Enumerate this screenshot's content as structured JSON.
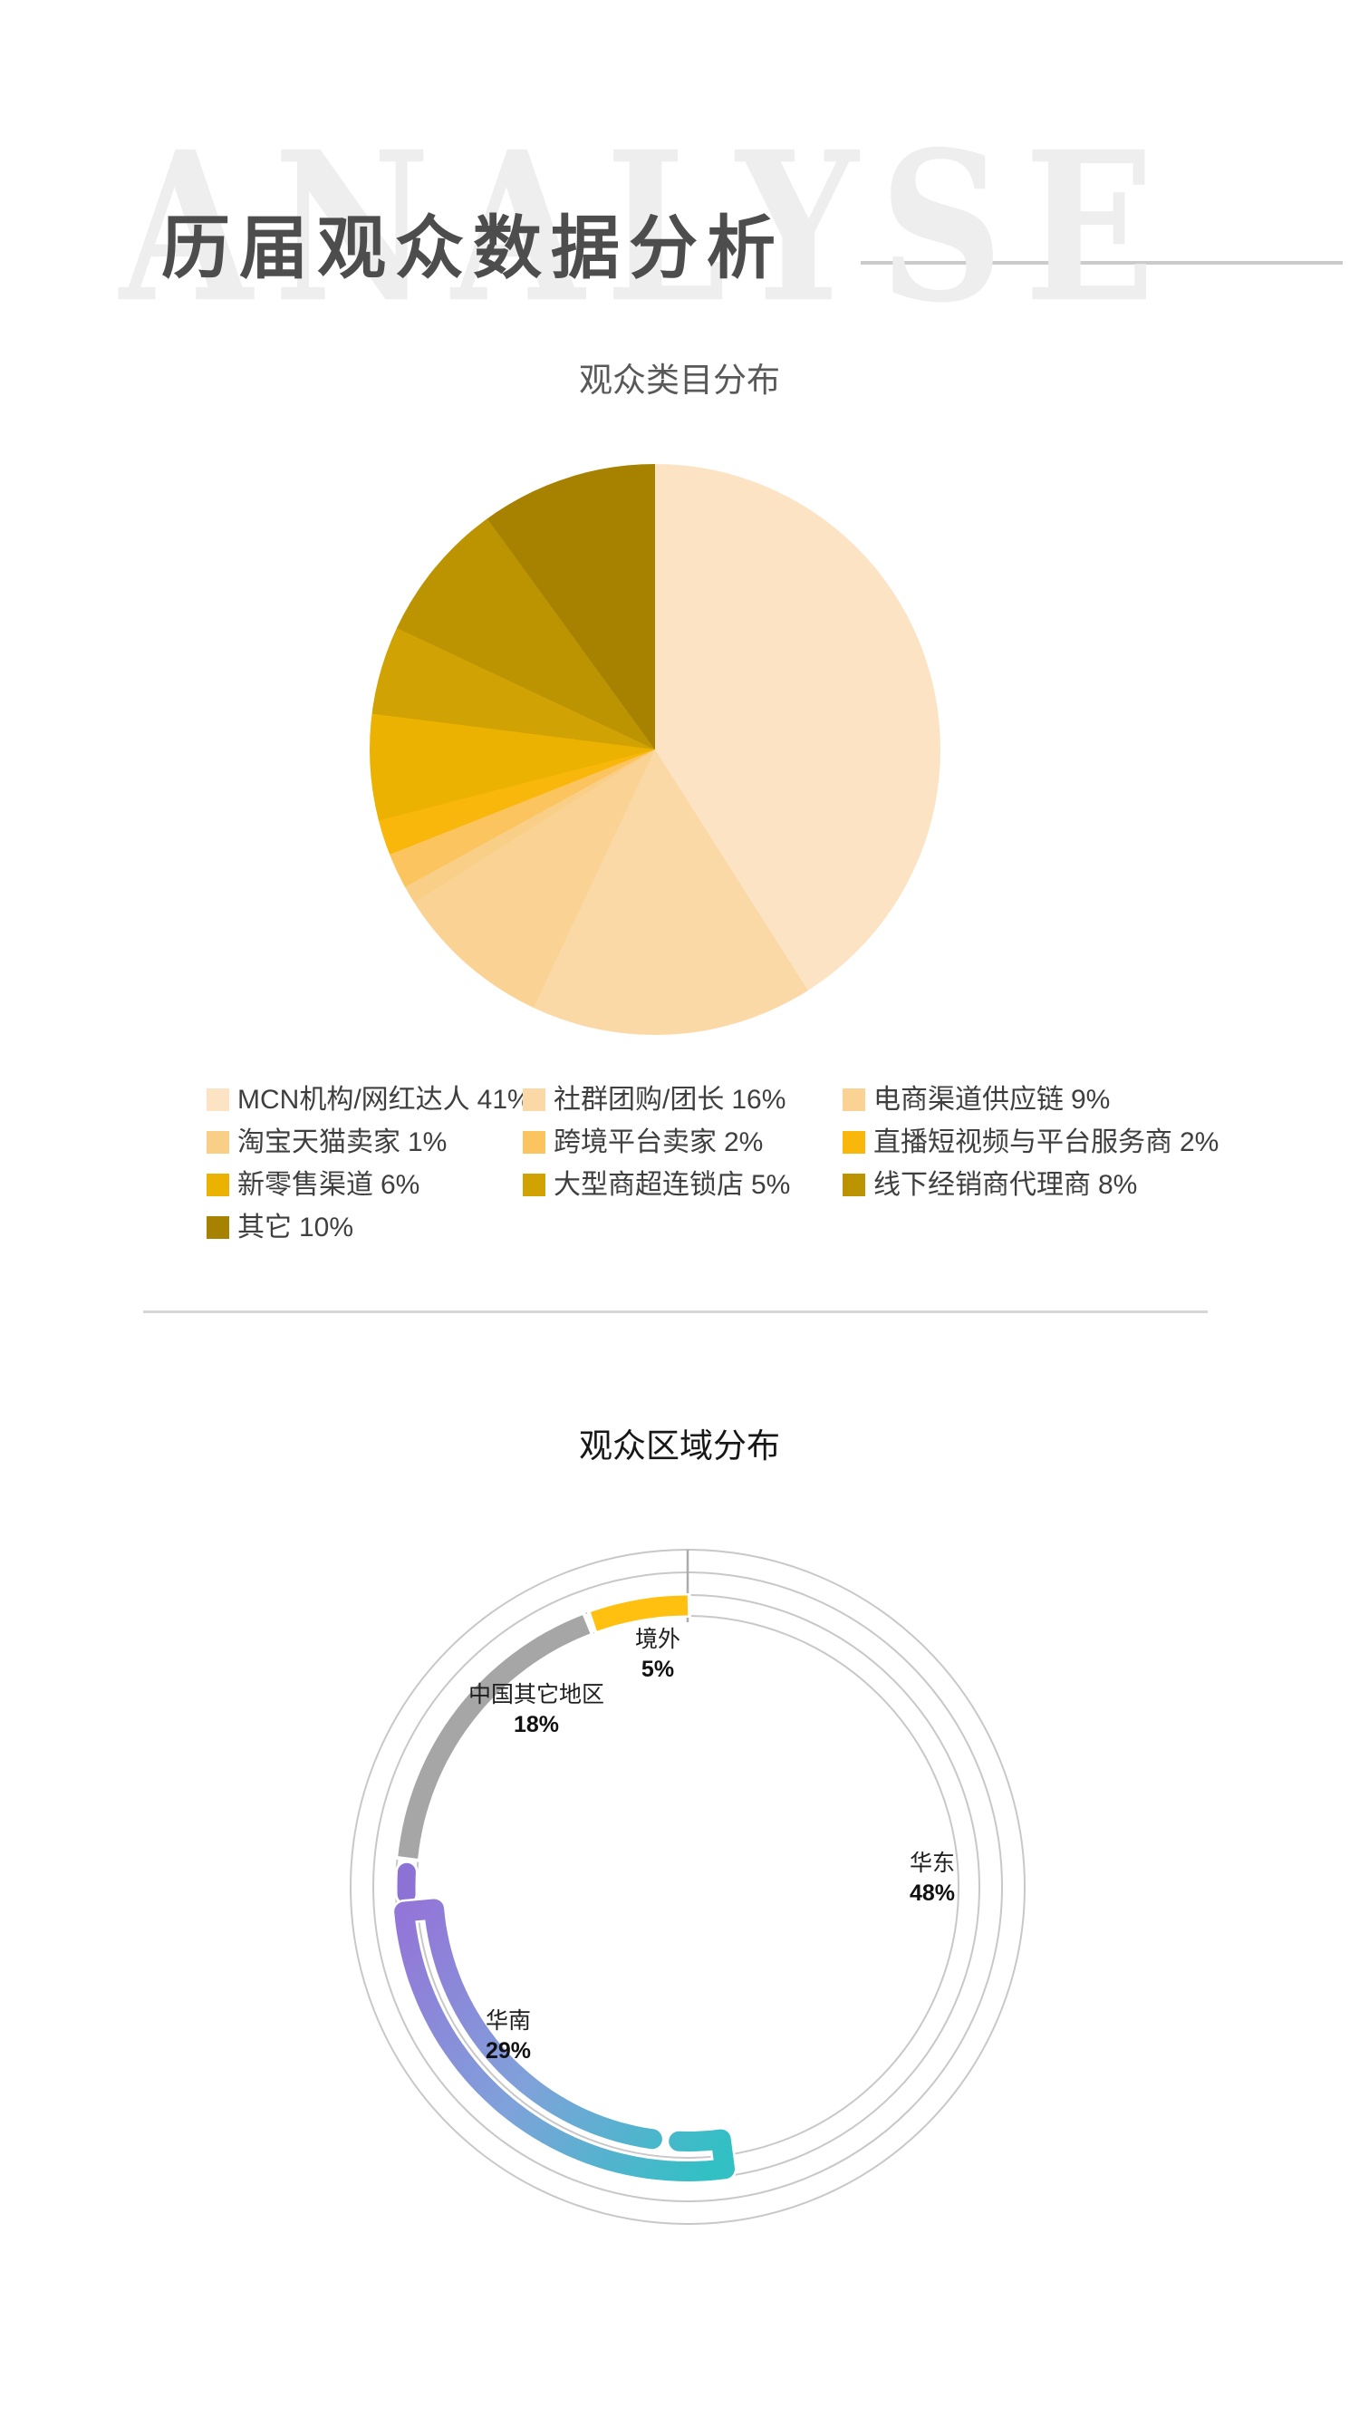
{
  "watermark": "ANALYSE",
  "page_title": "历届观众数据分析",
  "chart_data": [
    {
      "type": "pie",
      "title": "观众类目分布",
      "start_angle_deg": 0,
      "direction": "clockwise",
      "slices": [
        {
          "label": "MCN机构/网红达人",
          "value_pct": 41,
          "pct_label": "41%",
          "color": "#FCE3C3"
        },
        {
          "label": "社群团购/团长",
          "value_pct": 16,
          "pct_label": "16%",
          "color": "#FBD9A6"
        },
        {
          "label": "电商渠道供应链",
          "value_pct": 9,
          "pct_label": "9%",
          "color": "#FAD294"
        },
        {
          "label": "淘宝天猫卖家",
          "value_pct": 1,
          "pct_label": "1%",
          "color": "#F9CE86"
        },
        {
          "label": "跨境平台卖家",
          "value_pct": 2,
          "pct_label": "2%",
          "color": "#FBC45F"
        },
        {
          "label": "直播短视频与平台服务商",
          "value_pct": 2,
          "pct_label": "2%",
          "color": "#F9B70B"
        },
        {
          "label": "新零售渠道",
          "value_pct": 6,
          "pct_label": "6%",
          "color": "#ECB201"
        },
        {
          "label": "大型商超连锁店",
          "value_pct": 5,
          "pct_label": "5%",
          "color": "#D1A203"
        },
        {
          "label": "线下经销商代理商",
          "value_pct": 8,
          "pct_label": "8%",
          "color": "#BC9402"
        },
        {
          "label": "其它",
          "value_pct": 10,
          "pct_label": "10%",
          "color": "#A78200"
        }
      ]
    },
    {
      "type": "radial-bar",
      "title": "观众区域分布",
      "direction": "counterclockwise_from_top",
      "regions": [
        {
          "name": "境外",
          "value_pct": 5,
          "pct_label": "5%",
          "color": "#FFC010"
        },
        {
          "name": "中国其它地区",
          "value_pct": 18,
          "pct_label": "18%",
          "color": "#A6A6A6"
        },
        {
          "name": "华东",
          "value_pct": 48,
          "pct_label": "48%",
          "color": "#32C0C4"
        },
        {
          "name": "华南",
          "value_pct": 29,
          "pct_label": "29%",
          "color": "#9377D8"
        }
      ],
      "gradient": [
        "#9377D8",
        "#7FA2DA",
        "#32C0C4"
      ],
      "nub_color": "#8D72D5",
      "track_color": "#C8C8C8",
      "outline_color": "#FFFFFF"
    }
  ],
  "divider_color": "#D6D6D6"
}
